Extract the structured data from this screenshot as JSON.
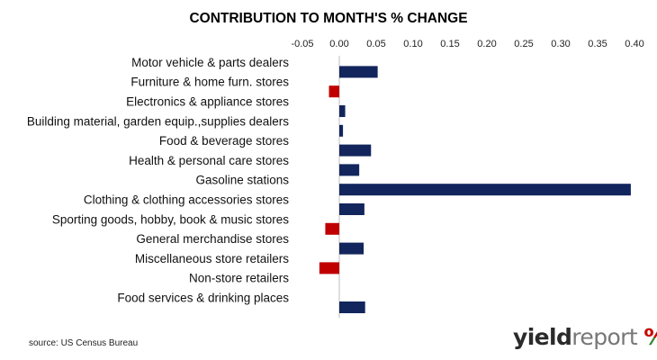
{
  "chart_data": {
    "type": "bar",
    "orientation": "horizontal",
    "title": "CONTRIBUTION TO MONTH'S % CHANGE",
    "categories": [
      "Motor vehicle & parts dealers",
      "Furniture & home furn. stores",
      "Electronics & appliance stores",
      "Building material, garden equip.,supplies dealers",
      "Food & beverage stores",
      "Health & personal care stores",
      "Gasoline stations",
      "Clothing & clothing accessories stores",
      "Sporting goods, hobby, book & music stores",
      "General merchandise stores",
      "Miscellaneous store retailers",
      "Non-store retailers",
      "Food services & drinking places"
    ],
    "values": [
      0.052,
      -0.014,
      0.008,
      0.005,
      0.043,
      0.027,
      0.395,
      0.034,
      -0.019,
      0.033,
      -0.027,
      0.0,
      0.035
    ],
    "xlim": [
      -0.05,
      0.4
    ],
    "ticks": [
      -0.05,
      0.0,
      0.05,
      0.1,
      0.15,
      0.2,
      0.25,
      0.3,
      0.35,
      0.4
    ],
    "tick_labels": [
      "-0.05",
      "0.00",
      "0.05",
      "0.10",
      "0.15",
      "0.20",
      "0.25",
      "0.30",
      "0.35",
      "0.40"
    ],
    "axis_position": "top",
    "grid": false,
    "colors": {
      "positive": "#12255c",
      "negative": "#c00000"
    }
  },
  "source": "source: US Census Bureau",
  "logo": {
    "part1": "yield",
    "part2": "report",
    "symbol": "%"
  }
}
